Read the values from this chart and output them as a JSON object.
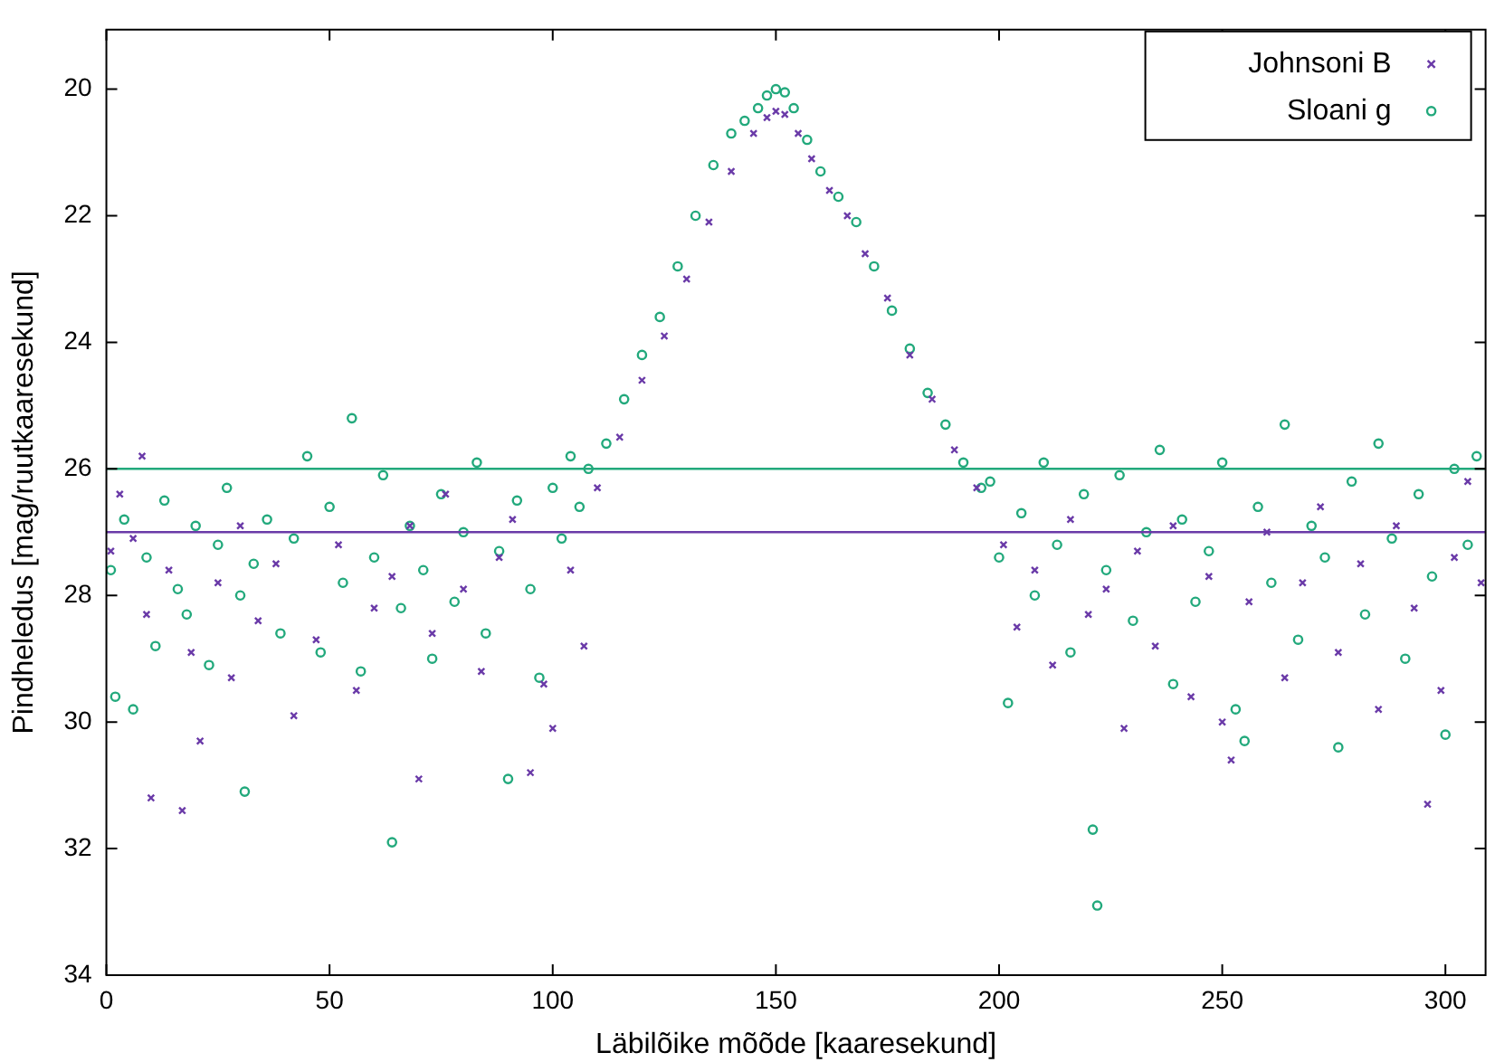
{
  "chart_data": {
    "type": "scatter",
    "xlabel": "Läbilõike mõõde [kaaresekund]",
    "ylabel": "Pindheledus [mag/ruutkaaresekund]",
    "xlim": [
      0,
      309
    ],
    "ylim": [
      34,
      19.06
    ],
    "xticks": [
      0,
      50,
      100,
      150,
      200,
      250,
      300
    ],
    "yticks": [
      20,
      22,
      24,
      26,
      28,
      30,
      32,
      34
    ],
    "grid": false,
    "legend": "top right",
    "series": [
      {
        "name": "Johnsoni B",
        "color": "#6a3aa8",
        "marker": "cross",
        "x": [
          1,
          3,
          6,
          8,
          9,
          10,
          14,
          17,
          19,
          21,
          25,
          28,
          30,
          34,
          38,
          42,
          47,
          52,
          56,
          60,
          64,
          68,
          70,
          73,
          76,
          80,
          84,
          88,
          91,
          95,
          98,
          100,
          104,
          107,
          110,
          115,
          120,
          125,
          130,
          135,
          140,
          145,
          148,
          150,
          152,
          155,
          158,
          162,
          166,
          170,
          175,
          180,
          185,
          190,
          195,
          201,
          204,
          208,
          212,
          216,
          220,
          224,
          228,
          231,
          235,
          239,
          243,
          247,
          250,
          252,
          256,
          260,
          264,
          268,
          272,
          276,
          281,
          285,
          289,
          293,
          296,
          299,
          302,
          305,
          308
        ],
        "values": [
          27.3,
          26.4,
          27.1,
          25.8,
          28.3,
          31.2,
          27.6,
          31.4,
          28.9,
          30.3,
          27.8,
          29.3,
          26.9,
          28.4,
          27.5,
          29.9,
          28.7,
          27.2,
          29.5,
          28.2,
          27.7,
          26.9,
          30.9,
          28.6,
          26.4,
          27.9,
          29.2,
          27.4,
          26.8,
          30.8,
          29.4,
          30.1,
          27.6,
          28.8,
          26.3,
          25.5,
          24.6,
          23.9,
          23.0,
          22.1,
          21.3,
          20.7,
          20.45,
          20.35,
          20.4,
          20.7,
          21.1,
          21.6,
          22.0,
          22.6,
          23.3,
          24.2,
          24.9,
          25.7,
          26.3,
          27.2,
          28.5,
          27.6,
          29.1,
          26.8,
          28.3,
          27.9,
          30.1,
          27.3,
          28.8,
          26.9,
          29.6,
          27.7,
          30.0,
          30.6,
          28.1,
          27.0,
          29.3,
          27.8,
          26.6,
          28.9,
          27.5,
          29.8,
          26.9,
          28.2,
          31.3,
          29.5,
          27.4,
          26.2,
          27.8
        ]
      },
      {
        "name": "Sloani g",
        "color": "#22a97c",
        "marker": "circle",
        "x": [
          1,
          2,
          4,
          6,
          9,
          11,
          13,
          16,
          18,
          20,
          23,
          25,
          27,
          30,
          31,
          33,
          36,
          39,
          42,
          45,
          48,
          50,
          53,
          55,
          57,
          60,
          62,
          64,
          66,
          68,
          71,
          73,
          75,
          78,
          80,
          83,
          85,
          88,
          90,
          92,
          95,
          97,
          100,
          102,
          104,
          106,
          108,
          112,
          116,
          120,
          124,
          128,
          132,
          136,
          140,
          143,
          146,
          148,
          150,
          152,
          154,
          157,
          160,
          164,
          168,
          172,
          176,
          180,
          184,
          188,
          192,
          196,
          198,
          200,
          202,
          205,
          208,
          210,
          213,
          216,
          219,
          221,
          222,
          224,
          227,
          230,
          233,
          236,
          239,
          241,
          244,
          247,
          250,
          253,
          255,
          258,
          261,
          264,
          267,
          270,
          273,
          276,
          279,
          282,
          285,
          288,
          291,
          294,
          297,
          300,
          302,
          305,
          307
        ],
        "values": [
          27.6,
          29.6,
          26.8,
          29.8,
          27.4,
          28.8,
          26.5,
          27.9,
          28.3,
          26.9,
          29.1,
          27.2,
          26.3,
          28.0,
          31.1,
          27.5,
          26.8,
          28.6,
          27.1,
          25.8,
          28.9,
          26.6,
          27.8,
          25.2,
          29.2,
          27.4,
          26.1,
          31.9,
          28.2,
          26.9,
          27.6,
          29.0,
          26.4,
          28.1,
          27.0,
          25.9,
          28.6,
          27.3,
          30.9,
          26.5,
          27.9,
          29.3,
          26.3,
          27.1,
          25.8,
          26.6,
          26.0,
          25.6,
          24.9,
          24.2,
          23.6,
          22.8,
          22.0,
          21.2,
          20.7,
          20.5,
          20.3,
          20.1,
          20.0,
          20.05,
          20.3,
          20.8,
          21.3,
          21.7,
          22.1,
          22.8,
          23.5,
          24.1,
          24.8,
          25.3,
          25.9,
          26.3,
          26.2,
          27.4,
          29.7,
          26.7,
          28.0,
          25.9,
          27.2,
          28.9,
          26.4,
          31.7,
          32.9,
          27.6,
          26.1,
          28.4,
          27.0,
          25.7,
          29.4,
          26.8,
          28.1,
          27.3,
          25.9,
          29.8,
          30.3,
          26.6,
          27.8,
          25.3,
          28.7,
          26.9,
          27.4,
          30.4,
          26.2,
          28.3,
          25.6,
          27.1,
          29.0,
          26.4,
          27.7,
          30.2,
          26.0,
          27.2,
          25.8
        ]
      }
    ],
    "ref_lines": [
      {
        "axis": "y",
        "value": 26,
        "color": "#22a97c"
      },
      {
        "axis": "y",
        "value": 27,
        "color": "#6a3aa8"
      }
    ]
  }
}
